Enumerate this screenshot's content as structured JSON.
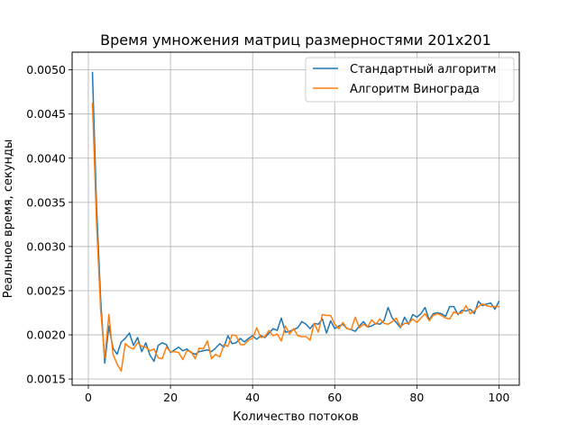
{
  "chart_data": {
    "type": "line",
    "title": "Время умножения матриц размерностями 201x201",
    "xlabel": "Количество потоков",
    "ylabel": "Реальное время, секунды",
    "xlim": [
      -3.95,
      104.95
    ],
    "ylim": [
      0.00143,
      0.0052
    ],
    "xticks": [
      0,
      20,
      40,
      60,
      80,
      100
    ],
    "yticks": [
      0.0015,
      0.002,
      0.0025,
      0.003,
      0.0035,
      0.004,
      0.0045,
      0.005
    ],
    "ytick_labels": [
      "0.0015",
      "0.0020",
      "0.0025",
      "0.0030",
      "0.0035",
      "0.0040",
      "0.0045",
      "0.0050"
    ],
    "grid": true,
    "legend_position": "top-right",
    "x": [
      1,
      2,
      3,
      4,
      5,
      6,
      7,
      8,
      9,
      10,
      11,
      12,
      13,
      14,
      15,
      16,
      17,
      18,
      19,
      20,
      21,
      22,
      23,
      24,
      25,
      26,
      27,
      28,
      29,
      30,
      31,
      32,
      33,
      34,
      35,
      36,
      37,
      38,
      39,
      40,
      41,
      42,
      43,
      44,
      45,
      46,
      47,
      48,
      49,
      50,
      51,
      52,
      53,
      54,
      55,
      56,
      57,
      58,
      59,
      60,
      61,
      62,
      63,
      64,
      65,
      66,
      67,
      68,
      69,
      70,
      71,
      72,
      73,
      74,
      75,
      76,
      77,
      78,
      79,
      80,
      81,
      82,
      83,
      84,
      85,
      86,
      87,
      88,
      89,
      90,
      91,
      92,
      93,
      94,
      95,
      96,
      97,
      98,
      99,
      100
    ],
    "series": [
      {
        "name": "Стандартный алгоритм",
        "color": "#1f77b4",
        "values": [
          0.00497,
          0.00345,
          0.0024,
          0.00168,
          0.0021,
          0.00185,
          0.00178,
          0.00192,
          0.00196,
          0.00202,
          0.00188,
          0.00197,
          0.00181,
          0.00191,
          0.00177,
          0.0017,
          0.00188,
          0.00191,
          0.00189,
          0.0018,
          0.00183,
          0.00186,
          0.00182,
          0.00184,
          0.0018,
          0.00178,
          0.00181,
          0.00182,
          0.00183,
          0.00181,
          0.00185,
          0.0019,
          0.00186,
          0.00199,
          0.0019,
          0.00191,
          0.00196,
          0.00192,
          0.00196,
          0.00199,
          0.00195,
          0.00199,
          0.00197,
          0.00202,
          0.00207,
          0.00205,
          0.00219,
          0.00203,
          0.00204,
          0.00206,
          0.00208,
          0.00215,
          0.00212,
          0.00207,
          0.00213,
          0.00212,
          0.00218,
          0.00202,
          0.00216,
          0.00207,
          0.0021,
          0.00212,
          0.00207,
          0.00206,
          0.00204,
          0.0021,
          0.00215,
          0.00209,
          0.0021,
          0.00213,
          0.00212,
          0.00216,
          0.00231,
          0.00219,
          0.00214,
          0.00208,
          0.0022,
          0.00212,
          0.00223,
          0.0022,
          0.00224,
          0.00231,
          0.00217,
          0.00224,
          0.00225,
          0.00224,
          0.00221,
          0.00232,
          0.00232,
          0.00223,
          0.00228,
          0.00227,
          0.00229,
          0.00224,
          0.00238,
          0.00233,
          0.00235,
          0.00236,
          0.00229,
          0.00238
        ]
      },
      {
        "name": "Алгоритм Винограда",
        "color": "#ff7f0e",
        "values": [
          0.00462,
          0.00325,
          0.00228,
          0.00174,
          0.00223,
          0.00178,
          0.00167,
          0.00159,
          0.0019,
          0.00186,
          0.00184,
          0.00191,
          0.00187,
          0.00186,
          0.00182,
          0.00184,
          0.00174,
          0.00173,
          0.00186,
          0.00181,
          0.00181,
          0.0018,
          0.00172,
          0.00182,
          0.00181,
          0.00173,
          0.00185,
          0.00184,
          0.00193,
          0.00173,
          0.00178,
          0.00175,
          0.00189,
          0.00187,
          0.002,
          0.00199,
          0.00189,
          0.00189,
          0.00194,
          0.00196,
          0.00208,
          0.00197,
          0.00198,
          0.00205,
          0.00199,
          0.00201,
          0.00193,
          0.0021,
          0.00201,
          0.00207,
          0.00199,
          0.00198,
          0.00198,
          0.00194,
          0.00213,
          0.00203,
          0.00223,
          0.00222,
          0.00222,
          0.00212,
          0.00207,
          0.00214,
          0.00207,
          0.00206,
          0.0022,
          0.00208,
          0.00212,
          0.00209,
          0.00217,
          0.00212,
          0.00218,
          0.00213,
          0.00212,
          0.00215,
          0.00219,
          0.00209,
          0.00213,
          0.00213,
          0.00218,
          0.00214,
          0.00219,
          0.00224,
          0.00216,
          0.00222,
          0.00224,
          0.00222,
          0.00219,
          0.00218,
          0.00226,
          0.00224,
          0.00225,
          0.00233,
          0.00224,
          0.00227,
          0.00232,
          0.00235,
          0.00233,
          0.00232,
          0.00232,
          0.00232
        ]
      }
    ]
  }
}
